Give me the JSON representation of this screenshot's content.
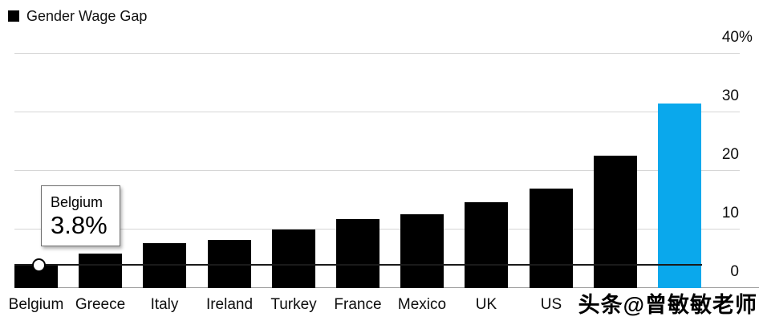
{
  "legend": {
    "label": "Gender Wage Gap",
    "swatch_color": "#000000"
  },
  "chart_data": {
    "type": "bar",
    "title": "Gender Wage Gap",
    "categories": [
      "Belgium",
      "Greece",
      "Italy",
      "Ireland",
      "Turkey",
      "France",
      "Mexico",
      "UK",
      "US",
      "",
      ""
    ],
    "values": [
      3.8,
      5.7,
      7.5,
      8.1,
      9.9,
      11.7,
      12.4,
      14.5,
      16.9,
      22.4,
      31.4
    ],
    "unit": "%",
    "ylabel": "",
    "xlabel": "",
    "ylim": [
      0,
      40
    ],
    "yticks": [
      {
        "value": 40,
        "label": "40",
        "suffix": "%"
      },
      {
        "value": 30,
        "label": "30",
        "suffix": ""
      },
      {
        "value": 20,
        "label": "20",
        "suffix": ""
      },
      {
        "value": 10,
        "label": "10",
        "suffix": ""
      },
      {
        "value": 0,
        "label": "0",
        "suffix": ""
      }
    ],
    "grid": "horizontal",
    "axis_side": "right",
    "legend_position": "top-left",
    "bar_color": "#000000",
    "highlight_index": 10,
    "highlight_color": "#0aa8ec",
    "gridline_color": "#d6d6d6",
    "baseline_color": "#999999"
  },
  "hover": {
    "bar_index": 0,
    "line_value": 3.8,
    "line_color": "#1a1a1a"
  },
  "tooltip": {
    "country": "Belgium",
    "value": "3.8%"
  },
  "watermark": {
    "text": "头条@曾敏敏老师"
  }
}
